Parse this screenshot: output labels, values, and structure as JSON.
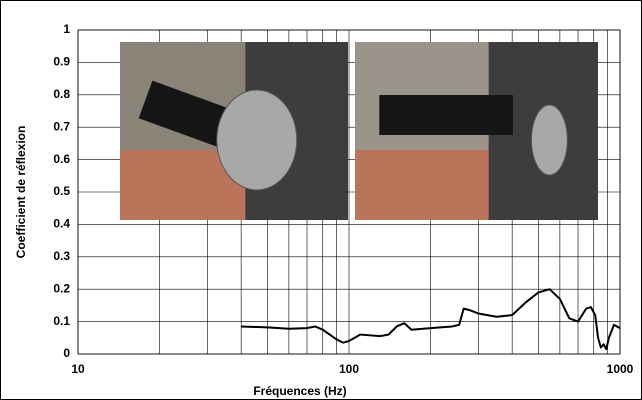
{
  "chart_data": {
    "type": "line",
    "x_label": "Fréquences (Hz)",
    "y_label": "Coefficient de réflexion",
    "x_scale": "log",
    "grid": true,
    "xlim": [
      10,
      1000
    ],
    "xticks": [
      10,
      100,
      1000
    ],
    "ylim": [
      0,
      1
    ],
    "yticks": [
      0,
      0.1,
      0.2,
      0.3,
      0.4,
      0.5,
      0.6,
      0.7,
      0.8,
      0.9,
      1
    ],
    "series": [
      {
        "color": "#000000",
        "x": [
          40,
          50,
          60,
          70,
          75,
          80,
          90,
          95,
          100,
          110,
          130,
          140,
          150,
          160,
          170,
          200,
          240,
          255,
          265,
          280,
          300,
          350,
          400,
          450,
          500,
          550,
          600,
          650,
          700,
          750,
          780,
          810,
          830,
          850,
          870,
          890,
          910,
          950,
          1000
        ],
        "values": [
          0.085,
          0.082,
          0.078,
          0.08,
          0.085,
          0.075,
          0.045,
          0.035,
          0.04,
          0.06,
          0.055,
          0.06,
          0.085,
          0.095,
          0.075,
          0.08,
          0.085,
          0.09,
          0.14,
          0.135,
          0.125,
          0.115,
          0.12,
          0.16,
          0.19,
          0.2,
          0.17,
          0.11,
          0.1,
          0.14,
          0.145,
          0.12,
          0.05,
          0.02,
          0.03,
          0.015,
          0.05,
          0.09,
          0.08
        ]
      }
    ]
  }
}
